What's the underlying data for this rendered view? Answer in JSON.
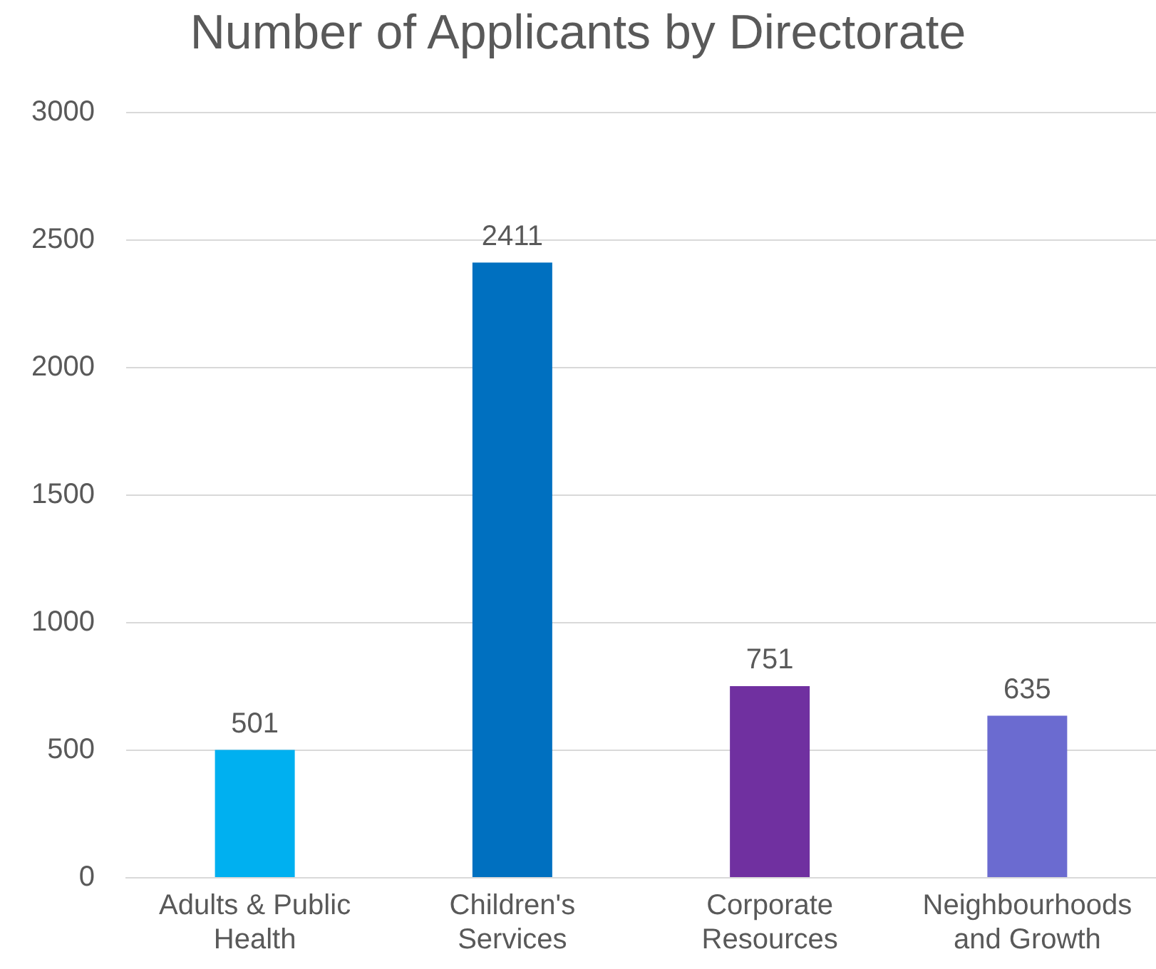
{
  "chart_data": {
    "type": "bar",
    "title": "Number of Applicants by Directorate",
    "categories": [
      "Adults & Public Health",
      "Children's Services",
      "Corporate Resources",
      "Neighbourhoods and Growth"
    ],
    "values": [
      501,
      2411,
      751,
      635
    ],
    "colors": [
      "#00b0f0",
      "#0070c0",
      "#7030a0",
      "#6b6bd0"
    ],
    "ylim": [
      0,
      3000
    ],
    "yticks": [
      0,
      500,
      1000,
      1500,
      2000,
      2500,
      3000
    ],
    "grid": "y",
    "legend": false,
    "data_labels": true
  }
}
